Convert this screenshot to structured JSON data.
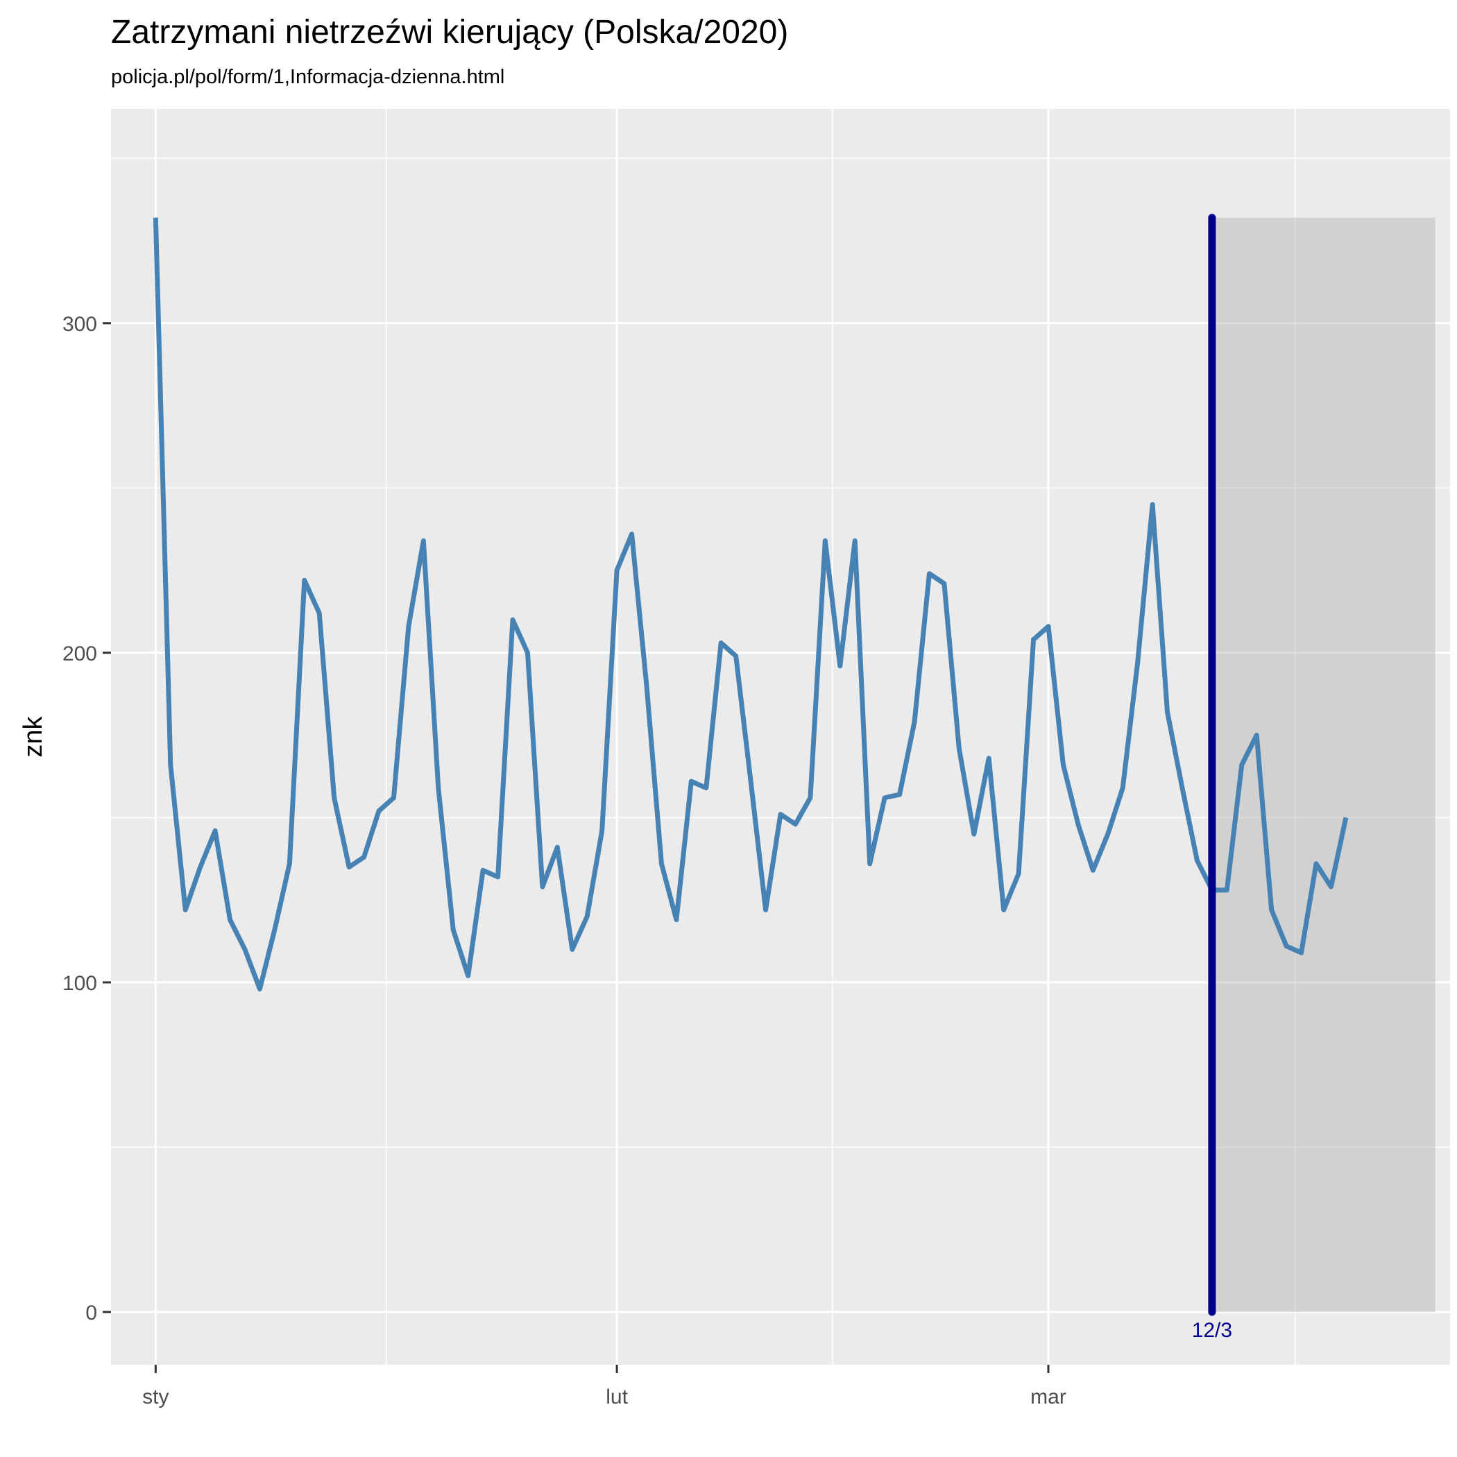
{
  "chart_data": {
    "type": "line",
    "title": "Zatrzymani nietrzeźwi kierujący (Polska/2020)",
    "subtitle": "policja.pl/pol/form/1,Informacja-dzienna.html",
    "xlabel": "",
    "ylabel": "znk",
    "x_start": "2020-01-01",
    "x_end": "2020-03-24",
    "xlim": [
      "2019-12-29",
      "2020-03-28"
    ],
    "ylim": [
      -16,
      365
    ],
    "yticks": [
      0,
      100,
      200,
      300
    ],
    "xticks": [
      {
        "date": "2020-01-01",
        "label": "sty"
      },
      {
        "date": "2020-02-01",
        "label": "lut"
      },
      {
        "date": "2020-03-01",
        "label": "mar"
      }
    ],
    "grid": true,
    "line_color": "#4682b4",
    "values": [
      332,
      166,
      122,
      135,
      146,
      119,
      110,
      98,
      116,
      136,
      222,
      212,
      156,
      135,
      138,
      152,
      156,
      208,
      234,
      159,
      116,
      102,
      134,
      132,
      210,
      200,
      129,
      141,
      110,
      120,
      146,
      225,
      236,
      190,
      136,
      119,
      161,
      159,
      203,
      199,
      161,
      122,
      151,
      148,
      156,
      234,
      196,
      234,
      136,
      156,
      157,
      179,
      224,
      221,
      171,
      145,
      168,
      122,
      133,
      204,
      208,
      166,
      148,
      134,
      145,
      159,
      197,
      245,
      182,
      159,
      137,
      128,
      128,
      166,
      175,
      122,
      111,
      109,
      136,
      129,
      150
    ],
    "marker": {
      "date": "2020-03-12",
      "label": "12/3",
      "color": "#00008b"
    },
    "shaded_region": {
      "start": "2020-03-12",
      "end": "2020-03-27",
      "ymin": 0,
      "ymax": 332
    }
  }
}
